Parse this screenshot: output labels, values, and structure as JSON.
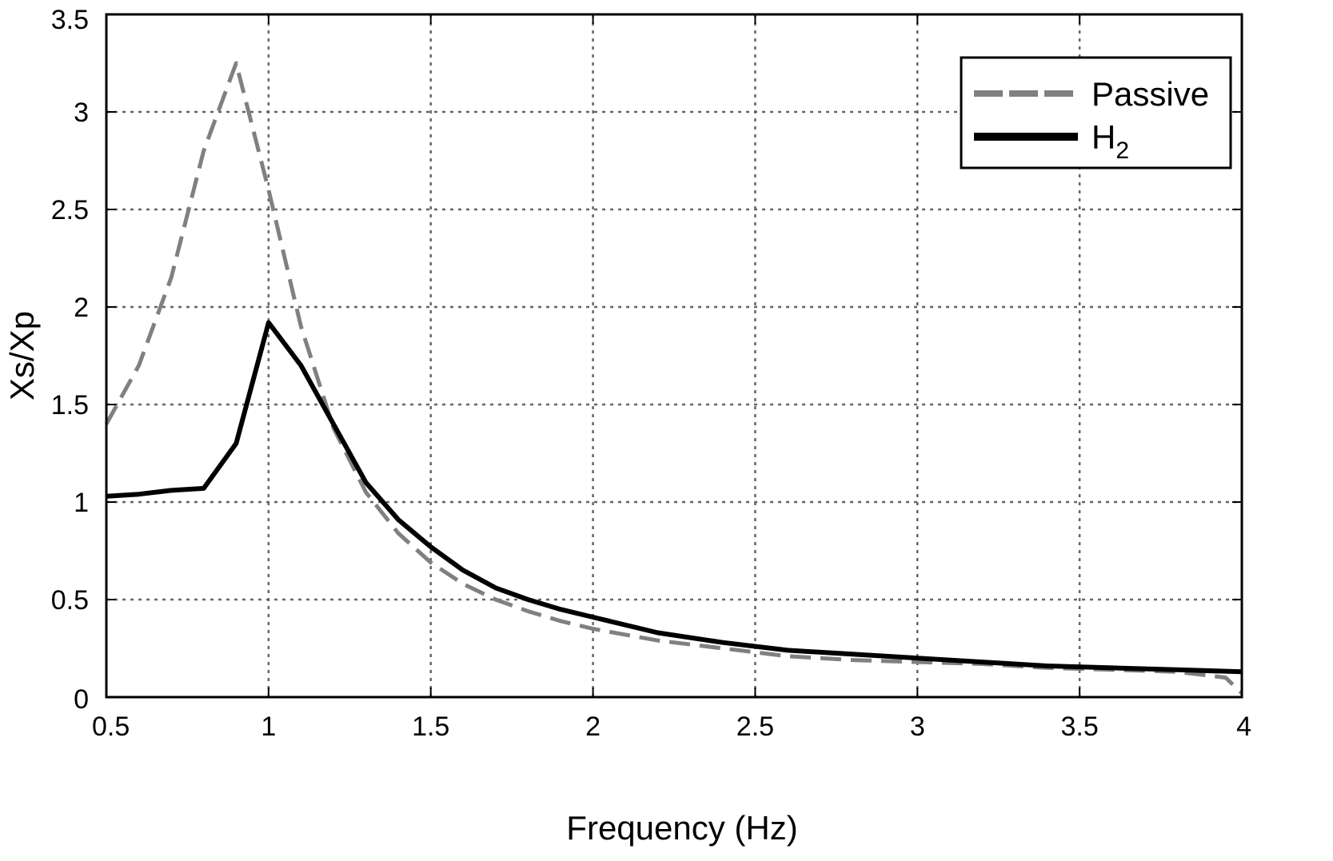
{
  "chart_data": {
    "type": "line",
    "title": "",
    "xlabel": "Frequency (Hz)",
    "ylabel": "Xs/Xp",
    "xlim": [
      0.5,
      4
    ],
    "ylim": [
      0,
      3.5
    ],
    "xticks": [
      0.5,
      1,
      1.5,
      2,
      2.5,
      3,
      3.5,
      4
    ],
    "xtick_labels": [
      "0.5",
      "1",
      "1.5",
      "2",
      "2.5",
      "3",
      "3.5",
      "4"
    ],
    "yticks": [
      0,
      0.5,
      1,
      1.5,
      2,
      2.5,
      3,
      3.5
    ],
    "ytick_labels": [
      "0",
      "0.5",
      "1",
      "1.5",
      "2",
      "2.5",
      "3",
      "3.5"
    ],
    "grid": true,
    "legend": {
      "placement": "top-right"
    },
    "series": [
      {
        "name": "Passive",
        "style": "dashed",
        "color": "#808080",
        "x": [
          0.5,
          0.6,
          0.7,
          0.8,
          0.9,
          1.0,
          1.1,
          1.2,
          1.3,
          1.4,
          1.5,
          1.6,
          1.7,
          1.8,
          1.9,
          2.0,
          2.2,
          2.4,
          2.6,
          2.8,
          3.0,
          3.2,
          3.4,
          3.6,
          3.8,
          3.95,
          4.0
        ],
        "y": [
          1.4,
          1.7,
          2.15,
          2.8,
          3.25,
          2.6,
          1.9,
          1.38,
          1.05,
          0.84,
          0.69,
          0.58,
          0.5,
          0.44,
          0.39,
          0.35,
          0.29,
          0.25,
          0.21,
          0.19,
          0.18,
          0.17,
          0.15,
          0.14,
          0.13,
          0.1,
          0.02
        ]
      },
      {
        "name": "H",
        "name_subscript": "2",
        "style": "solid",
        "color": "#000000",
        "x": [
          0.5,
          0.6,
          0.7,
          0.8,
          0.9,
          1.0,
          1.1,
          1.2,
          1.3,
          1.4,
          1.5,
          1.6,
          1.7,
          1.8,
          1.9,
          2.0,
          2.2,
          2.4,
          2.6,
          2.8,
          3.0,
          3.2,
          3.4,
          3.6,
          3.8,
          4.0
        ],
        "y": [
          1.03,
          1.04,
          1.06,
          1.07,
          1.3,
          1.92,
          1.7,
          1.4,
          1.1,
          0.91,
          0.77,
          0.65,
          0.56,
          0.5,
          0.45,
          0.41,
          0.33,
          0.28,
          0.24,
          0.22,
          0.2,
          0.18,
          0.16,
          0.15,
          0.14,
          0.13
        ]
      }
    ]
  }
}
